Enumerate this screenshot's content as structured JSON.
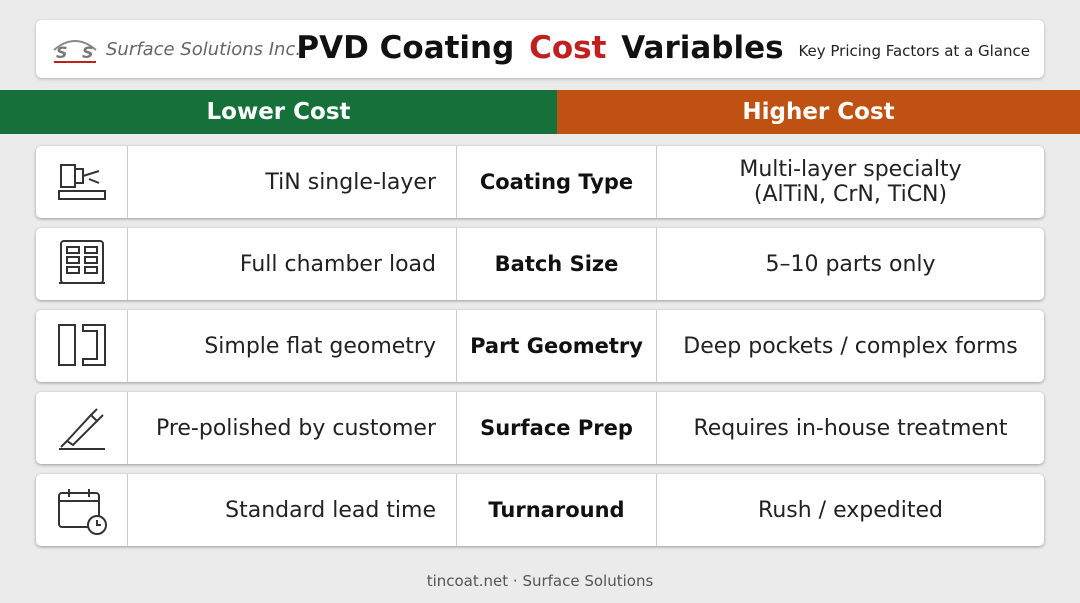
{
  "header": {
    "logo": "Surface Solutions Inc.",
    "title": [
      "PVD Coating",
      "Cost",
      "Variables"
    ],
    "subtitle": "Key Pricing Factors at a Glance"
  },
  "band": {
    "lower": "Lower Cost",
    "higher": "Higher Cost"
  },
  "table": {
    "rows": [
      {
        "lower": "TiN single-layer",
        "factor": "Coating Type",
        "higher": "Multi-layer specialty (AlTiN, CrN, TiCN)"
      },
      {
        "lower": "Full chamber load",
        "factor": "Batch Size",
        "higher": "5–10 parts only"
      },
      {
        "lower": "Simple flat geometry",
        "factor": "Part Geometry",
        "higher": "Deep pockets / complex forms"
      },
      {
        "lower": "Pre-polished by customer",
        "factor": "Surface Prep",
        "higher": "Requires in-house treatment"
      },
      {
        "lower": "Standard lead time",
        "factor": "Turnaround",
        "higher": "Rush / expedited"
      }
    ]
  },
  "footer": "tincoat.net · Surface Solutions"
}
